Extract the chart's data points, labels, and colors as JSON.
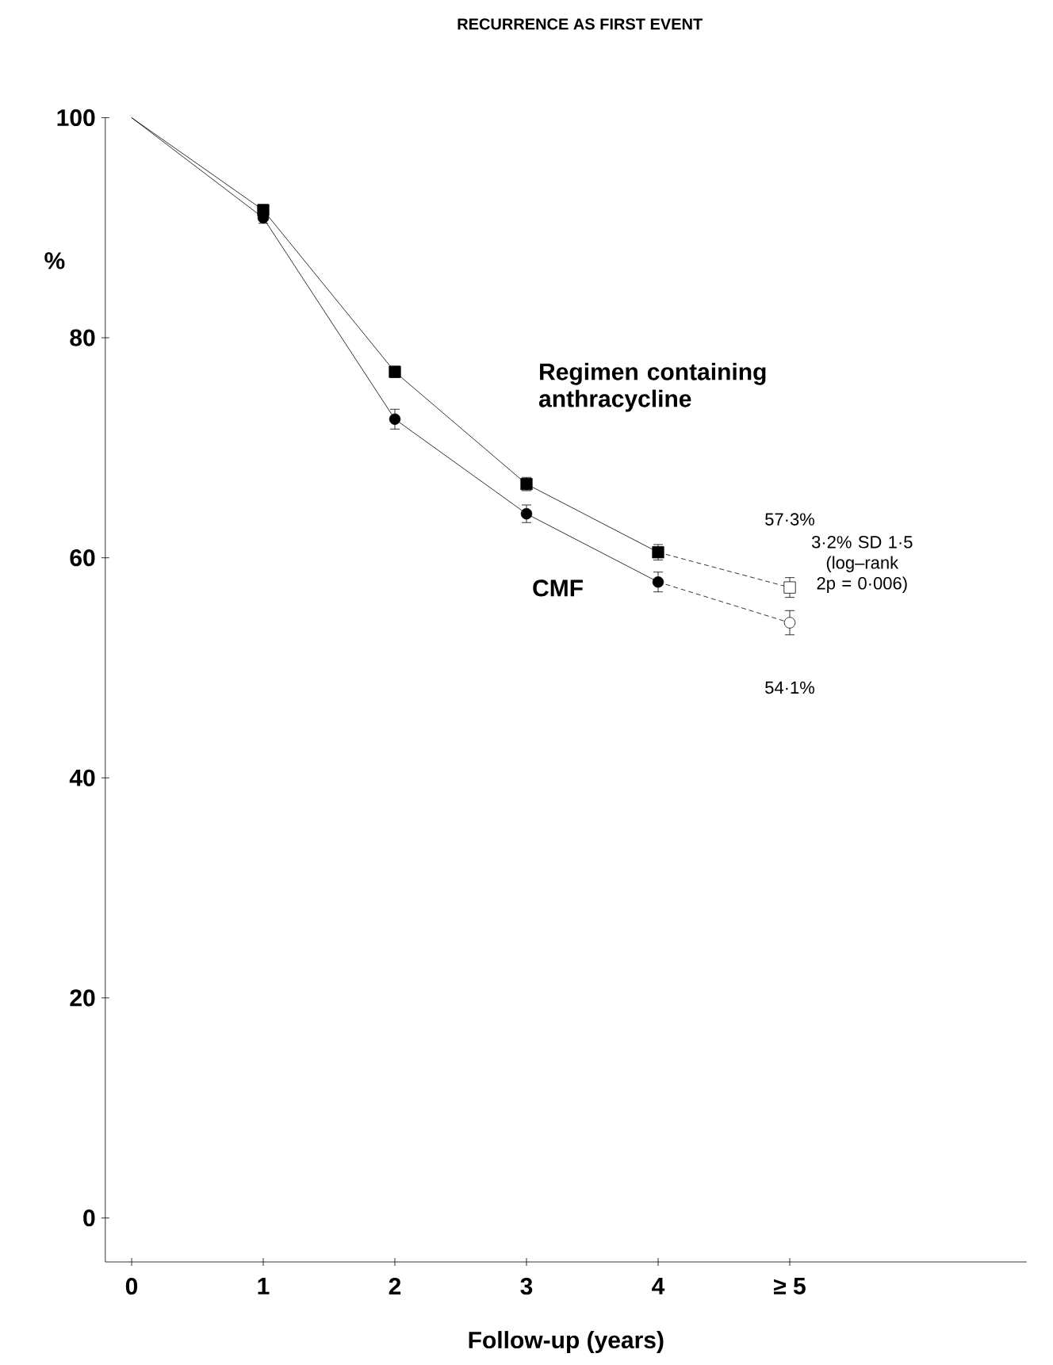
{
  "chart_data": {
    "type": "line",
    "title": "RECURRENCE AS FIRST EVENT",
    "xlabel": "Follow-up (years)",
    "ylabel": "%",
    "xlim": [
      -0.2,
      6.8
    ],
    "ylim": [
      -4,
      100
    ],
    "xticks": [
      0,
      1,
      2,
      3,
      4,
      {
        "value": 5,
        "label": "≥ 5"
      }
    ],
    "yticks": [
      0,
      20,
      40,
      60,
      80,
      100
    ],
    "grid": false,
    "series": [
      {
        "name": "Regimen containing anthracycline",
        "color": "#000000",
        "marker": "square",
        "line_style": "solid",
        "x": [
          0,
          1,
          2,
          3,
          4
        ],
        "values": [
          100,
          91.6,
          76.9,
          66.7,
          60.5
        ],
        "errors": [
          null,
          0.5,
          0.5,
          0.6,
          0.7
        ]
      },
      {
        "name": "CMF",
        "color": "#000000",
        "marker": "circle",
        "line_style": "solid",
        "x": [
          0,
          1,
          2,
          3,
          4
        ],
        "values": [
          100,
          90.9,
          72.6,
          64.0,
          57.8
        ],
        "errors": [
          null,
          0.5,
          0.9,
          0.8,
          0.9
        ]
      },
      {
        "color": "#000000",
        "marker": "square",
        "line_style": "dashed",
        "x": [
          4,
          5
        ],
        "values": [
          60.5,
          57.3
        ],
        "errors": [
          null,
          0.9
        ]
      },
      {
        "color": "#000000",
        "marker": "circle",
        "line_style": "dashed",
        "x": [
          4,
          5
        ],
        "values": [
          57.8,
          54.1
        ],
        "errors": [
          null,
          1.1
        ]
      }
    ],
    "annotations": [
      "57·3%",
      "54·1%",
      "3·2% SD 1·5 (log–rank 2p = 0·006)"
    ]
  }
}
